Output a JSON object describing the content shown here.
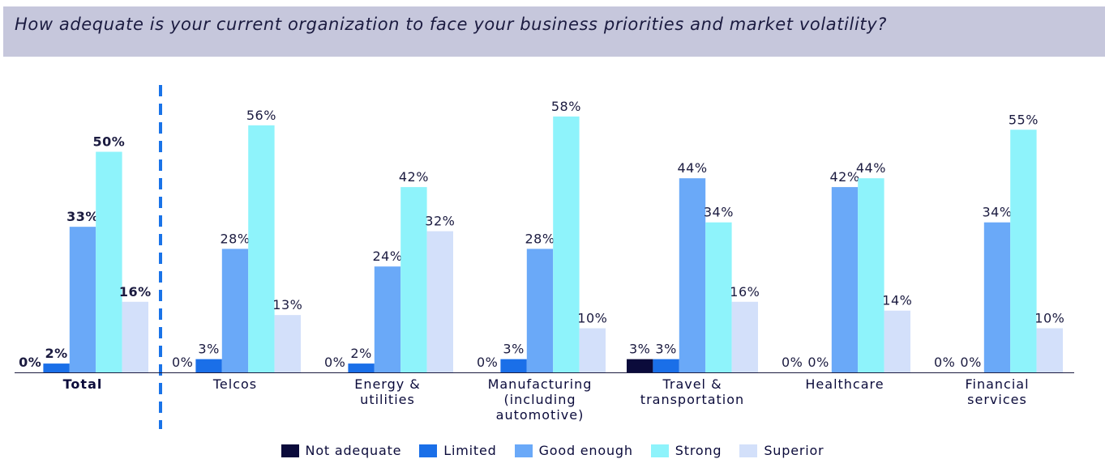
{
  "chart_data": {
    "type": "bar",
    "title": "How adequate is your current organization to face your business priorities and market volatility?",
    "categories": [
      "Total",
      "Telcos",
      "Energy & utilities",
      "Manufacturing (including automotive)",
      "Travel & transportation",
      "Healthcare",
      "Financial services"
    ],
    "ylim": [
      0,
      60
    ],
    "series": [
      {
        "name": "Not adequate",
        "color": "#0b0b3b",
        "values": [
          0,
          0,
          0,
          0,
          3,
          0,
          0
        ],
        "value_labels": [
          "0%",
          "0%",
          "0%",
          "0%",
          "3%",
          "0%",
          "0%"
        ]
      },
      {
        "name": "Limited",
        "color": "#1a6fe8",
        "values": [
          2,
          3,
          2,
          3,
          3,
          0,
          0
        ],
        "value_labels": [
          "2%",
          "3%",
          "2%",
          "3%",
          "3%",
          "0%",
          "0%"
        ]
      },
      {
        "name": "Good enough",
        "color": "#6aa9f8",
        "values": [
          33,
          28,
          24,
          28,
          44,
          42,
          34
        ],
        "value_labels": [
          "33%",
          "28%",
          "24%",
          "28%",
          "44%",
          "42%",
          "34%"
        ]
      },
      {
        "name": "Strong",
        "color": "#8ef3fb",
        "values": [
          50,
          56,
          42,
          58,
          34,
          44,
          55
        ],
        "value_labels": [
          "50%",
          "56%",
          "42%",
          "58%",
          "34%",
          "44%",
          "55%"
        ]
      },
      {
        "name": "Superior",
        "color": "#d3e0fa",
        "values": [
          16,
          13,
          32,
          10,
          16,
          14,
          10
        ],
        "value_labels": [
          "16%",
          "13%",
          "32%",
          "10%",
          "16%",
          "14%",
          "10%"
        ]
      }
    ]
  }
}
